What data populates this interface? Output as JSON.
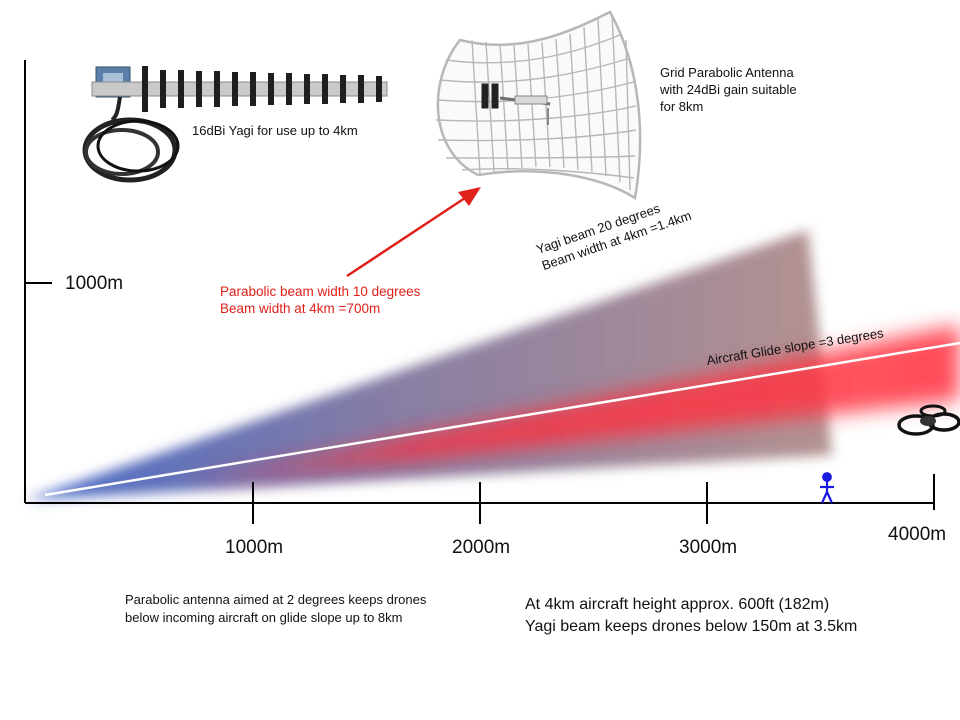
{
  "axis": {
    "y_tick": "1000m",
    "x_ticks": [
      "1000m",
      "2000m",
      "3000m",
      "4000m"
    ]
  },
  "labels": {
    "yagi_caption": "16dBi Yagi for use up to 4km",
    "parabolic_caption": [
      "Grid Parabolic Antenna",
      "with 24dBi gain suitable",
      "for 8km"
    ],
    "parabolic_beam": [
      "Parabolic beam width 10 degrees",
      "Beam width at 4km =700m"
    ],
    "yagi_beam": [
      "Yagi beam 20 degrees",
      "Beam width at 4km =1.4km"
    ],
    "glide_slope": "Aircraft Glide slope =3 degrees",
    "note_left": [
      "Parabolic antenna aimed at 2 degrees keeps drones",
      "below incoming aircraft on glide slope up to 8km"
    ],
    "note_right": [
      "At 4km aircraft height approx. 600ft  (182m)",
      "Yagi beam keeps drones below 150m at 3.5km"
    ]
  },
  "icons": [
    "yagi-antenna-icon",
    "grid-parabolic-antenna-icon",
    "person-icon",
    "drone-icon"
  ],
  "colors": {
    "yagi_beam_start": "#3f63c6",
    "yagi_beam_end": "#a77f7d",
    "parabolic_beam": "#ff2a3a",
    "glide_slope": "#ffffff",
    "arrow": "#e0201a",
    "person": "#1a1ae0"
  }
}
